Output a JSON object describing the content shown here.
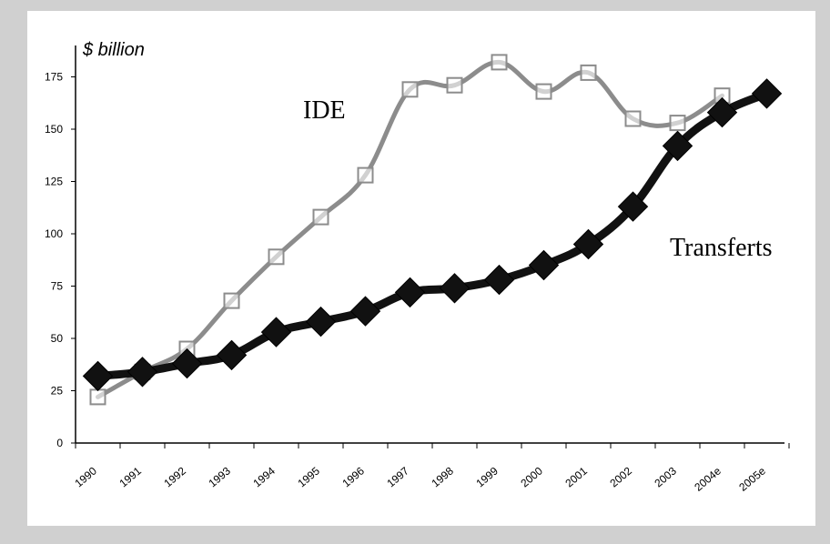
{
  "chart_data": {
    "type": "line",
    "ylabel": "$ billion",
    "xlabel": "",
    "title": "",
    "ylim": [
      0,
      185
    ],
    "yticks": [
      0,
      25,
      50,
      75,
      100,
      125,
      150,
      175
    ],
    "categories": [
      "1990",
      "1991",
      "1992",
      "1993",
      "1994",
      "1995",
      "1996",
      "1997",
      "1998",
      "1999",
      "2000",
      "2001",
      "2002",
      "2003",
      "2004e",
      "2005e"
    ],
    "series": [
      {
        "name": "IDE",
        "color": "#8c8c8c",
        "marker": "open-square",
        "values": [
          22,
          34,
          45,
          68,
          89,
          108,
          128,
          169,
          171,
          182,
          168,
          177,
          155,
          153,
          166,
          null
        ]
      },
      {
        "name": "Transferts",
        "color": "#111111",
        "marker": "filled-diamond",
        "values": [
          32,
          34,
          38,
          42,
          53,
          58,
          63,
          72,
          74,
          78,
          85,
          95,
          113,
          142,
          158,
          167
        ]
      }
    ],
    "grid": false,
    "legend": "inline labels"
  }
}
